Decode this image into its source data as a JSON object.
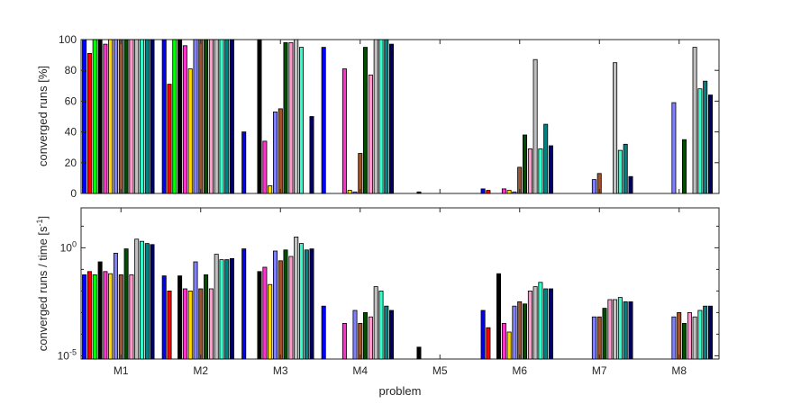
{
  "colors": [
    "#0000ff",
    "#ff0000",
    "#00ff00",
    "#000000",
    "#ff33cc",
    "#ffd700",
    "#8080ff",
    "#a0522d",
    "#004d00",
    "#ff99cc",
    "#c0c0c0",
    "#33ffcc",
    "#008080",
    "#000066",
    "#99cc66"
  ],
  "chart_data": [
    {
      "type": "bar",
      "categories": [
        "M1",
        "M2",
        "M3",
        "M4",
        "M5",
        "M6",
        "M7",
        "M8"
      ],
      "xlabel": "",
      "ylabel": "converged runs [%]",
      "ylim": [
        0,
        100
      ],
      "yticks": [
        "0",
        "20",
        "40",
        "60",
        "80",
        "100"
      ],
      "series": [
        {
          "values": [
            100,
            100,
            40,
            95,
            null,
            3,
            null,
            null
          ]
        },
        {
          "values": [
            91,
            71,
            null,
            null,
            null,
            2,
            null,
            null
          ]
        },
        {
          "values": [
            100,
            100,
            null,
            null,
            null,
            null,
            null,
            null
          ]
        },
        {
          "values": [
            100,
            100,
            100,
            null,
            1,
            null,
            null,
            null
          ]
        },
        {
          "values": [
            97,
            96,
            34,
            81,
            null,
            3,
            null,
            null
          ]
        },
        {
          "values": [
            100,
            81,
            5,
            2,
            null,
            2,
            null,
            null
          ]
        },
        {
          "values": [
            100,
            100,
            53,
            1,
            null,
            1,
            9,
            59
          ]
        },
        {
          "values": [
            100,
            100,
            55,
            26,
            null,
            17,
            13,
            null
          ]
        },
        {
          "values": [
            100,
            100,
            98,
            95,
            null,
            38,
            null,
            35
          ]
        },
        {
          "values": [
            100,
            100,
            98,
            77,
            null,
            29,
            null,
            null
          ]
        },
        {
          "values": [
            100,
            100,
            100,
            100,
            null,
            87,
            85,
            95
          ]
        },
        {
          "values": [
            100,
            100,
            95,
            100,
            null,
            29,
            28,
            68
          ]
        },
        {
          "values": [
            100,
            100,
            null,
            100,
            null,
            45,
            32,
            73
          ]
        },
        {
          "values": [
            100,
            100,
            50,
            97,
            null,
            31,
            11,
            64
          ]
        },
        {
          "values": [
            null,
            null,
            null,
            null,
            null,
            null,
            null,
            null
          ]
        }
      ]
    },
    {
      "type": "bar",
      "categories": [
        "M1",
        "M2",
        "M3",
        "M4",
        "M5",
        "M6",
        "M7",
        "M8"
      ],
      "xlabel": "problem",
      "ylabel": "converged runs / time [s",
      "ylabel_sup": "-1",
      "ylabel_end": "]",
      "yscale": "log",
      "ylim_exp": [
        -5,
        0
      ],
      "yticks": [
        {
          "base": "10",
          "exp": "-5"
        },
        {
          "base": "10",
          "exp": "0"
        }
      ],
      "series": [
        {
          "values": [
            -1.25,
            -1.3,
            -0.05,
            -2.7,
            null,
            -2.9,
            null,
            null
          ]
        },
        {
          "values": [
            -1.1,
            -2.0,
            null,
            null,
            null,
            -3.7,
            null,
            null
          ]
        },
        {
          "values": [
            -1.25,
            null,
            null,
            null,
            null,
            null,
            null,
            null
          ]
        },
        {
          "values": [
            -0.65,
            -1.3,
            -1.1,
            null,
            -4.6,
            -1.2,
            null,
            null
          ]
        },
        {
          "values": [
            -1.1,
            -1.9,
            -0.9,
            -3.5,
            null,
            -3.5,
            null,
            null
          ]
        },
        {
          "values": [
            -1.2,
            -2.0,
            -1.7,
            null,
            null,
            -3.9,
            null,
            null
          ]
        },
        {
          "values": [
            -0.25,
            -0.65,
            -0.15,
            -2.9,
            null,
            -2.7,
            -3.2,
            -3.2
          ]
        },
        {
          "values": [
            -1.25,
            -1.9,
            -0.6,
            -3.5,
            null,
            -2.5,
            -3.2,
            -3.0
          ]
        },
        {
          "values": [
            -0.05,
            -1.25,
            -0.1,
            -3.0,
            null,
            -2.6,
            -2.8,
            -3.5
          ]
        },
        {
          "values": [
            -1.25,
            -1.9,
            -0.4,
            -3.2,
            null,
            -2.0,
            -2.4,
            -3.0
          ]
        },
        {
          "values": [
            0.4,
            -0.3,
            0.5,
            -1.8,
            null,
            -1.8,
            -2.4,
            -3.2
          ]
        },
        {
          "values": [
            0.3,
            -0.55,
            0.2,
            -2.0,
            null,
            -1.6,
            -2.3,
            -2.9
          ]
        },
        {
          "values": [
            0.2,
            -0.55,
            -0.1,
            -2.7,
            null,
            -1.9,
            -2.5,
            -2.7
          ]
        },
        {
          "values": [
            0.15,
            -0.5,
            -0.05,
            -2.9,
            null,
            -1.9,
            -2.5,
            -2.7
          ]
        },
        {
          "values": [
            null,
            null,
            null,
            null,
            null,
            null,
            null,
            null
          ]
        }
      ]
    }
  ]
}
